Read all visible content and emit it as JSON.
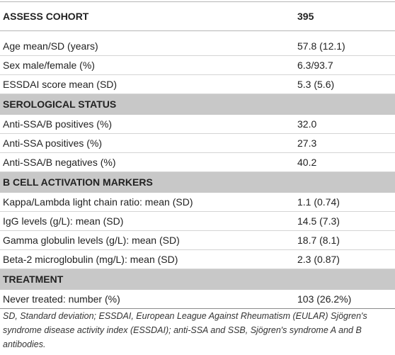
{
  "header": {
    "label": "ASSESS COHORT",
    "value": "395"
  },
  "demographics": [
    {
      "label": "Age mean/SD (years)",
      "value": "57.8 (12.1)"
    },
    {
      "label": "Sex male/female (%)",
      "value": "6.3/93.7"
    },
    {
      "label": "ESSDAI score mean (SD)",
      "value": "5.3 (5.6)"
    }
  ],
  "serological": {
    "title": "SEROLOGICAL STATUS",
    "rows": [
      {
        "label": "Anti-SSA/B positives (%)",
        "value": "32.0"
      },
      {
        "label": "Anti-SSA positives (%)",
        "value": "27.3"
      },
      {
        "label": "Anti-SSA/B negatives (%)",
        "value": "40.2"
      }
    ]
  },
  "b_cell": {
    "title": "B CELL ACTIVATION MARKERS",
    "rows": [
      {
        "label": "Kappa/Lambda light chain ratio: mean (SD)",
        "value": "1.1 (0.74)"
      },
      {
        "label": "IgG levels (g/L): mean (SD)",
        "value": "14.5 (7.3)"
      },
      {
        "label": "Gamma globulin levels (g/L): mean (SD)",
        "value": "18.7 (8.1)"
      },
      {
        "label": "Beta-2 microglobulin (mg/L): mean (SD)",
        "value": "2.3 (0.87)"
      }
    ]
  },
  "treatment": {
    "title": "TREATMENT",
    "rows": [
      {
        "label": "Never treated: number (%)",
        "value": "103 (26.2%)"
      }
    ]
  },
  "footnote": "SD, Standard deviation; ESSDAI, European League Against Rheumatism (EULAR) Sjögren's syndrome disease activity index (ESSDAI); anti-SSA and SSB, Sjögren's syndrome A and B antibodies."
}
